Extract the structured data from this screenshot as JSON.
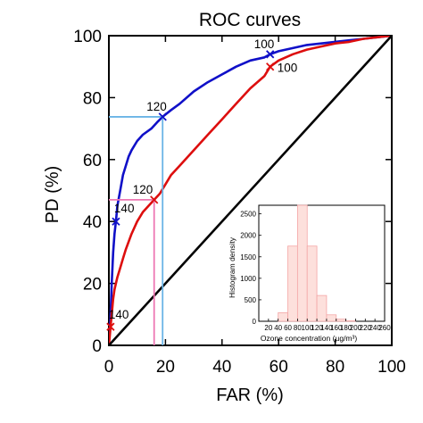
{
  "chart_data": [
    {
      "type": "line",
      "title": "ROC curves",
      "xlabel": "FAR (%)",
      "ylabel": "PD (%)",
      "xlim": [
        0,
        100
      ],
      "ylim": [
        0,
        100
      ],
      "xticks": [
        "0",
        "20",
        "40",
        "60",
        "80",
        "100"
      ],
      "yticks": [
        "0",
        "20",
        "40",
        "60",
        "80",
        "100"
      ],
      "grid": false,
      "series": [
        {
          "color": "#1010c8",
          "points": [
            [
              0,
              0
            ],
            [
              0.3,
              5
            ],
            [
              0.7,
              12
            ],
            [
              1,
              20
            ],
            [
              1.5,
              30
            ],
            [
              2,
              36
            ],
            [
              2.5,
              40
            ],
            [
              3,
              45
            ],
            [
              4,
              50
            ],
            [
              5,
              55
            ],
            [
              6,
              58
            ],
            [
              7,
              61
            ],
            [
              8,
              63
            ],
            [
              10,
              66
            ],
            [
              12,
              68
            ],
            [
              15,
              70
            ],
            [
              17,
              72
            ],
            [
              19,
              73.8
            ],
            [
              22,
              76
            ],
            [
              25,
              78
            ],
            [
              30,
              82
            ],
            [
              35,
              85
            ],
            [
              40,
              87.5
            ],
            [
              45,
              90
            ],
            [
              50,
              92
            ],
            [
              55,
              93
            ],
            [
              57,
              94
            ],
            [
              60,
              95
            ],
            [
              65,
              96
            ],
            [
              70,
              97
            ],
            [
              75,
              97.5
            ],
            [
              80,
              98
            ],
            [
              85,
              98.5
            ],
            [
              90,
              99
            ],
            [
              95,
              99.5
            ],
            [
              100,
              100
            ]
          ]
        },
        {
          "color": "#dd0e0e",
          "points": [
            [
              0,
              0
            ],
            [
              0.3,
              3
            ],
            [
              0.6,
              6
            ],
            [
              1,
              10
            ],
            [
              1.5,
              15
            ],
            [
              2,
              18
            ],
            [
              3,
              22
            ],
            [
              4,
              25
            ],
            [
              5,
              28
            ],
            [
              6,
              31
            ],
            [
              8,
              36
            ],
            [
              10,
              40
            ],
            [
              12,
              43
            ],
            [
              14,
              45
            ],
            [
              16,
              47
            ],
            [
              18,
              49
            ],
            [
              20,
              52
            ],
            [
              22,
              55
            ],
            [
              25,
              58
            ],
            [
              30,
              63
            ],
            [
              35,
              68
            ],
            [
              40,
              73
            ],
            [
              45,
              78
            ],
            [
              50,
              83
            ],
            [
              55,
              87
            ],
            [
              57,
              90
            ],
            [
              60,
              92
            ],
            [
              65,
              94
            ],
            [
              70,
              95.5
            ],
            [
              75,
              96.5
            ],
            [
              80,
              97.5
            ],
            [
              85,
              98
            ],
            [
              90,
              99
            ],
            [
              95,
              99.5
            ],
            [
              100,
              100
            ]
          ]
        },
        {
          "color": "#000000",
          "points": [
            [
              0,
              0
            ],
            [
              100,
              100
            ]
          ]
        }
      ],
      "thresholds": [
        {
          "label": "100",
          "x": 57,
          "y": 94,
          "color": "#1010c8"
        },
        {
          "label": "120",
          "x": 19,
          "y": 73.8,
          "color": "#1010c8"
        },
        {
          "label": "140",
          "x": 2.5,
          "y": 40,
          "color": "#1010c8"
        },
        {
          "label": "100",
          "x": 57,
          "y": 90,
          "color": "#dd0e0e"
        },
        {
          "label": "120",
          "x": 16,
          "y": 47,
          "color": "#dd0e0e"
        },
        {
          "label": "140",
          "x": 0.6,
          "y": 6,
          "color": "#dd0e0e"
        }
      ],
      "threshold_guides": [
        {
          "x": 19,
          "y": 73.8,
          "color": "#6ab4e6"
        },
        {
          "x": 16,
          "y": 47,
          "color": "#ee78b4"
        }
      ]
    },
    {
      "type": "bar",
      "title": "",
      "xlabel": "Ozone concentration (µg/m³)",
      "ylabel": "Histogram density",
      "xlim": [
        0,
        260
      ],
      "ylim": [
        0,
        2700
      ],
      "xticks": [
        "20",
        "40",
        "60",
        "80",
        "100",
        "120",
        "140",
        "160",
        "180",
        "200",
        "220",
        "240",
        "260"
      ],
      "yticks": [
        "0",
        "500",
        "1000",
        "1500",
        "2000",
        "2500"
      ],
      "bin_edges": [
        40,
        60,
        80,
        100,
        120,
        140,
        160,
        180,
        200
      ],
      "values": [
        200,
        1750,
        2700,
        1750,
        600,
        150,
        50,
        10
      ],
      "bar_fill": "#fde0dc",
      "bar_stroke": "#f4a6a6"
    }
  ]
}
